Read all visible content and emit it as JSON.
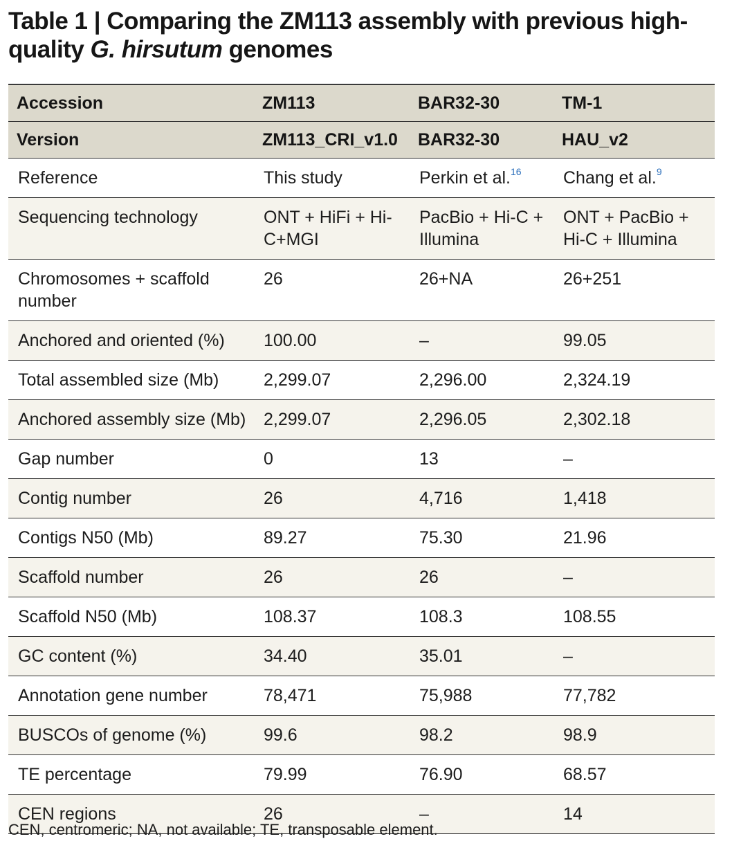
{
  "title": {
    "part1": "Table 1 | Comparing the ZM113 assembly with previous high-quality ",
    "italic": "G. hirsutum",
    "part2": " genomes"
  },
  "table": {
    "header_rows": [
      [
        "Accession",
        "ZM113",
        "BAR32-30",
        "TM-1"
      ],
      [
        "Version",
        "ZM113_CRI_v1.0",
        "BAR32-30",
        "HAU_v2"
      ]
    ],
    "rows": [
      {
        "label": "Reference",
        "zm113": "This study",
        "bar": "Perkin et al.",
        "bar_ref": "16",
        "tm1": "Chang et al.",
        "tm1_ref": "9"
      },
      {
        "label": "Sequencing technology",
        "zm113": "ONT + HiFi + Hi-C+MGI",
        "bar": "PacBio + Hi-C + Illumina",
        "tm1": "ONT + PacBio + Hi-C + Illumina"
      },
      {
        "label": "Chromosomes + scaffold number",
        "zm113": "26",
        "bar": "26+NA",
        "tm1": "26+251"
      },
      {
        "label": "Anchored and oriented (%)",
        "zm113": "100.00",
        "bar": "–",
        "tm1": "99.05"
      },
      {
        "label": "Total assembled size (Mb)",
        "zm113": "2,299.07",
        "bar": "2,296.00",
        "tm1": "2,324.19"
      },
      {
        "label": "Anchored assembly size (Mb)",
        "zm113": "2,299.07",
        "bar": "2,296.05",
        "tm1": "2,302.18"
      },
      {
        "label": "Gap number",
        "zm113": "0",
        "bar": "13",
        "tm1": "–"
      },
      {
        "label": "Contig number",
        "zm113": "26",
        "bar": "4,716",
        "tm1": "1,418"
      },
      {
        "label": "Contigs N50 (Mb)",
        "zm113": "89.27",
        "bar": "75.30",
        "tm1": "21.96"
      },
      {
        "label": "Scaffold number",
        "zm113": "26",
        "bar": "26",
        "tm1": "–"
      },
      {
        "label": "Scaffold N50 (Mb)",
        "zm113": "108.37",
        "bar": "108.3",
        "tm1": "108.55"
      },
      {
        "label": "GC content (%)",
        "zm113": "34.40",
        "bar": "35.01",
        "tm1": "–"
      },
      {
        "label": "Annotation gene number",
        "zm113": "78,471",
        "bar": "75,988",
        "tm1": "77,782"
      },
      {
        "label": "BUSCOs of genome (%)",
        "zm113": "99.6",
        "bar": "98.2",
        "tm1": "98.9"
      },
      {
        "label": "TE percentage",
        "zm113": "79.99",
        "bar": "76.90",
        "tm1": "68.57"
      },
      {
        "label": "CEN regions",
        "zm113": "26",
        "bar": "–",
        "tm1": "14"
      }
    ]
  },
  "footnote": "CEN, centromeric; NA, not available; TE, transposable element."
}
